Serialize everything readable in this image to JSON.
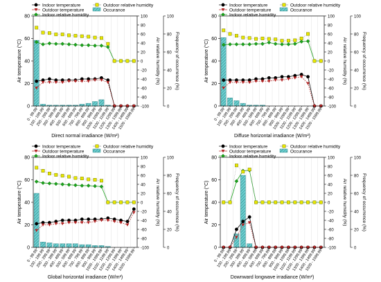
{
  "chart_data": [
    {
      "type": "bar",
      "xlabel": "Direct normal irradiance (W/m²)",
      "ylabel": "Air temperature (°C)",
      "y2label": "Air relative humidity (%)",
      "y3label": "Frequency of occurrence (%)",
      "ylim": [
        0,
        80
      ],
      "y2lim": [
        -100,
        100
      ],
      "y3lim": [
        0,
        100
      ],
      "yticks": [
        0,
        20,
        40,
        60,
        80
      ],
      "y2ticks": [
        -100,
        -80,
        -60,
        -40,
        -20,
        0,
        20,
        40,
        60,
        80,
        100
      ],
      "y3ticks": [
        0,
        20,
        40,
        60,
        80,
        100
      ],
      "categories": [
        "0 - 99.99",
        "100 - 199.99",
        "200 - 299.99",
        "300 - 399.99",
        "400 - 499.99",
        "500 - 599.99",
        "600 - 699.99",
        "700 - 799.99",
        "800 - 899.99",
        "900 - 999.99",
        "1000 - 1099.99",
        "1100 - 1199.99",
        "1200 - 1299.99",
        "1300 - 1399.99",
        "1400 - 1499.99",
        "1500 - 1599.99"
      ],
      "legend": [
        "Indoor temperature",
        "Outdoor temperature",
        "Indoor relative humidity",
        "Outdoor relative humidity",
        "Occurance"
      ],
      "series": [
        {
          "name": "Occurance",
          "kind": "bar",
          "axis": "y3",
          "values": [
            73,
            2,
            1,
            1,
            1,
            1,
            1,
            2,
            3,
            5,
            7,
            1,
            0,
            0,
            0,
            0
          ]
        },
        {
          "name": "Indoor temperature",
          "kind": "line",
          "axis": "y",
          "values": [
            22,
            23,
            24,
            23,
            23,
            23,
            23,
            24,
            24,
            24,
            25,
            23,
            0,
            0,
            0,
            0
          ]
        },
        {
          "name": "Outdoor temperature",
          "kind": "line",
          "axis": "y",
          "values": [
            16,
            21,
            21,
            21,
            21,
            22,
            22,
            22,
            22,
            23,
            23,
            21,
            0,
            0,
            0,
            0
          ]
        },
        {
          "name": "Indoor relative humidity",
          "kind": "line",
          "axis": "y2",
          "values": [
            42,
            37,
            39,
            38,
            38,
            37,
            36,
            35,
            35,
            34,
            34,
            31,
            0,
            0,
            0,
            0
          ]
        },
        {
          "name": "Outdoor relative humidity",
          "kind": "line",
          "axis": "y2",
          "values": [
            74,
            63,
            62,
            59,
            59,
            57,
            56,
            55,
            54,
            52,
            51,
            38,
            0,
            0,
            0,
            0
          ]
        }
      ]
    },
    {
      "type": "bar",
      "xlabel": "Diffuse horizontal irradiance (W/m²)",
      "ylabel": "Air temperature (°C)",
      "y2label": "Air relative humidity (%)",
      "y3label": "Frequency of occurrence (%)",
      "ylim": [
        0,
        80
      ],
      "y2lim": [
        -100,
        100
      ],
      "y3lim": [
        0,
        100
      ],
      "yticks": [
        0,
        20,
        40,
        60,
        80
      ],
      "y2ticks": [
        -100,
        -80,
        -60,
        -40,
        -20,
        0,
        20,
        40,
        60,
        80,
        100
      ],
      "y3ticks": [
        0,
        20,
        40,
        60,
        80,
        100
      ],
      "categories": [
        "0 - 99.99",
        "100 - 199.99",
        "200 - 299.99",
        "300 - 399.99",
        "400 - 499.99",
        "500 - 599.99",
        "600 - 699.99",
        "700 - 799.99",
        "800 - 899.99",
        "900 - 999.99",
        "1000 - 1099.99",
        "1100 - 1199.99",
        "1200 - 1299.99",
        "1300 - 1399.99",
        "1400 - 1499.99",
        "1500 - 1599.99"
      ],
      "legend": [
        "Indoor temperature",
        "Outdoor temperature",
        "Indoor relative humidity",
        "Outdoor relative humidity",
        "Occurance"
      ],
      "series": [
        {
          "name": "Occurance",
          "kind": "bar",
          "axis": "y3",
          "values": [
            76,
            9,
            6,
            3,
            1,
            1,
            1,
            0,
            0,
            0,
            0,
            0,
            0,
            0,
            0,
            0
          ]
        },
        {
          "name": "Indoor temperature",
          "kind": "line",
          "axis": "y",
          "values": [
            23,
            23,
            23,
            23,
            23,
            24,
            24,
            25,
            25,
            26,
            26,
            27,
            28,
            26,
            0,
            0
          ]
        },
        {
          "name": "Outdoor temperature",
          "kind": "line",
          "axis": "y",
          "values": [
            16,
            21,
            21,
            21,
            21,
            22,
            22,
            22,
            23,
            23,
            24,
            25,
            26,
            20,
            0,
            0
          ]
        },
        {
          "name": "Indoor relative humidity",
          "kind": "line",
          "axis": "y2",
          "values": [
            36,
            37,
            37,
            37,
            37,
            38,
            38,
            41,
            38,
            37,
            37,
            38,
            43,
            44,
            0,
            0
          ]
        },
        {
          "name": "Outdoor relative humidity",
          "kind": "line",
          "axis": "y2",
          "values": [
            68,
            60,
            56,
            52,
            51,
            49,
            50,
            49,
            48,
            45,
            45,
            46,
            50,
            60,
            0,
            0
          ]
        }
      ]
    },
    {
      "type": "bar",
      "xlabel": "Global horizontal irradiance (W/m²)",
      "ylabel": "Air temperature (°C)",
      "y2label": "Air relative humidity (%)",
      "y3label": "Frequency of occurrence (%)",
      "ylim": [
        0,
        80
      ],
      "y2lim": [
        -100,
        100
      ],
      "y3lim": [
        0,
        100
      ],
      "yticks": [
        0,
        20,
        40,
        60,
        80
      ],
      "y2ticks": [
        -100,
        -80,
        -60,
        -40,
        -20,
        0,
        20,
        40,
        60,
        80,
        100
      ],
      "y3ticks": [
        0,
        20,
        40,
        60,
        80,
        100
      ],
      "categories": [
        "0 - 99.99",
        "100 - 199.99",
        "200 - 299.99",
        "300 - 399.99",
        "400 - 499.99",
        "500 - 599.99",
        "600 - 699.99",
        "700 - 799.99",
        "800 - 899.99",
        "900 - 999.99",
        "1000 - 1099.99",
        "1100 - 1199.99",
        "1200 - 1299.99",
        "1300 - 1399.99",
        "1400 - 1499.99",
        "1500 - 1599.99"
      ],
      "legend": [
        "Indoor temperature",
        "Outdoor temperature",
        "Indoor relative humidity",
        "Outdoor relative humidity",
        "Occurance"
      ],
      "series": [
        {
          "name": "Occurance",
          "kind": "bar",
          "axis": "y3",
          "values": [
            60,
            6,
            5,
            4,
            4,
            4,
            4,
            3,
            3,
            2,
            2,
            1,
            0,
            0,
            0,
            0
          ]
        },
        {
          "name": "Indoor temperature",
          "kind": "line",
          "axis": "y",
          "values": [
            21,
            22,
            22,
            23,
            24,
            24,
            24,
            25,
            25,
            25,
            25,
            26,
            25,
            24,
            23,
            34
          ]
        },
        {
          "name": "Outdoor temperature",
          "kind": "line",
          "axis": "y",
          "values": [
            15,
            20,
            20,
            21,
            21,
            22,
            22,
            22,
            22,
            23,
            24,
            24,
            23,
            22,
            20,
            31
          ]
        },
        {
          "name": "Indoor relative humidity",
          "kind": "line",
          "axis": "y2",
          "values": [
            46,
            43,
            42,
            41,
            40,
            39,
            38,
            37,
            37,
            36,
            35,
            0,
            0,
            0,
            0,
            0
          ]
        },
        {
          "name": "Outdoor relative humidity",
          "kind": "line",
          "axis": "y2",
          "values": [
            77,
            70,
            64,
            61,
            59,
            57,
            54,
            53,
            51,
            50,
            48,
            0,
            0,
            0,
            0,
            0
          ]
        }
      ]
    },
    {
      "type": "bar",
      "xlabel": "Downward longwave irradiance (W/m²)",
      "ylabel": "Air temperature (°C)",
      "y2label": "Air relative humidity (%)",
      "y3label": "Frequency of occurrence (%)",
      "ylim": [
        0,
        80
      ],
      "y2lim": [
        -100,
        100
      ],
      "y3lim": [
        0,
        100
      ],
      "yticks": [
        0,
        20,
        40,
        60,
        80
      ],
      "y2ticks": [
        -100,
        -80,
        -60,
        -40,
        -20,
        0,
        20,
        40,
        60,
        80,
        100
      ],
      "y3ticks": [
        0,
        20,
        40,
        60,
        80,
        100
      ],
      "categories": [
        "0 - 99.99",
        "100 - 199.99",
        "200 - 299.99",
        "300 - 399.99",
        "400 - 499.99",
        "500 - 599.99",
        "600 - 699.99",
        "700 - 799.99",
        "800 - 899.99",
        "900 - 999.99",
        "1000 - 1099.99",
        "1100 - 1199.99",
        "1200 - 1299.99",
        "1300 - 1399.99",
        "1400 - 1499.99",
        "1500 - 1599.99"
      ],
      "legend": [
        "Indoor temperature",
        "Outdoor temperature",
        "Indoor relative humidity",
        "Outdoor relative humidity",
        "Occurance"
      ],
      "series": [
        {
          "name": "Occurance",
          "kind": "bar",
          "axis": "y3",
          "values": [
            0,
            0,
            15,
            80,
            4,
            0,
            0,
            0,
            0,
            0,
            0,
            0,
            0,
            0,
            0,
            0
          ]
        },
        {
          "name": "Indoor temperature",
          "kind": "line",
          "axis": "y",
          "values": [
            0,
            0,
            16,
            23,
            27,
            0,
            0,
            0,
            0,
            0,
            0,
            0,
            0,
            0,
            0,
            0
          ]
        },
        {
          "name": "Outdoor temperature",
          "kind": "line",
          "axis": "y",
          "values": [
            0,
            0,
            9,
            20,
            22,
            0,
            0,
            0,
            0,
            0,
            0,
            0,
            0,
            0,
            0,
            0
          ]
        },
        {
          "name": "Indoor relative humidity",
          "kind": "line",
          "axis": "y2",
          "values": [
            0,
            0,
            47,
            70,
            71,
            0,
            0,
            0,
            0,
            0,
            0,
            0,
            0,
            0,
            0,
            0
          ]
        },
        {
          "name": "Outdoor relative humidity",
          "kind": "line",
          "axis": "y2",
          "values": [
            0,
            0,
            82,
            68,
            73,
            0,
            0,
            0,
            0,
            0,
            0,
            0,
            0,
            0,
            0,
            0
          ]
        }
      ]
    }
  ],
  "colors": {
    "indoor_temperature": "#000000",
    "outdoor_temperature": "#b22222",
    "indoor_relative_humidity": "#1aa31a",
    "outdoor_relative_humidity": "#e8e800",
    "occurance_fill": "#6ccfd0"
  }
}
